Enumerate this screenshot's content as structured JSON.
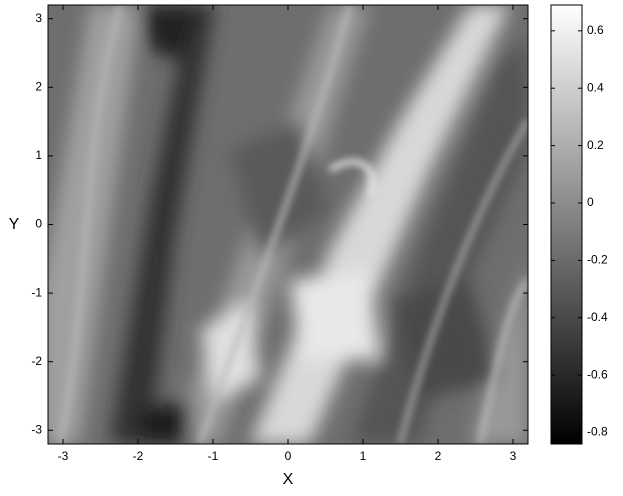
{
  "chart_data": {
    "type": "heatmap",
    "colormap": "gray",
    "xlabel": "X",
    "ylabel": "Y",
    "xlim": [
      -3.2,
      3.2
    ],
    "xticks": [
      -3,
      -2,
      -1,
      0,
      1,
      2,
      3
    ],
    "ylim": [
      -3.2,
      3.2
    ],
    "yticks": [
      -3,
      -2,
      -1,
      0,
      1,
      2,
      3
    ],
    "clim": [
      -0.84,
      0.69
    ],
    "cticks": [
      -0.8,
      -0.6,
      -0.4,
      -0.2,
      0,
      0.2,
      0.4,
      0.6
    ]
  }
}
